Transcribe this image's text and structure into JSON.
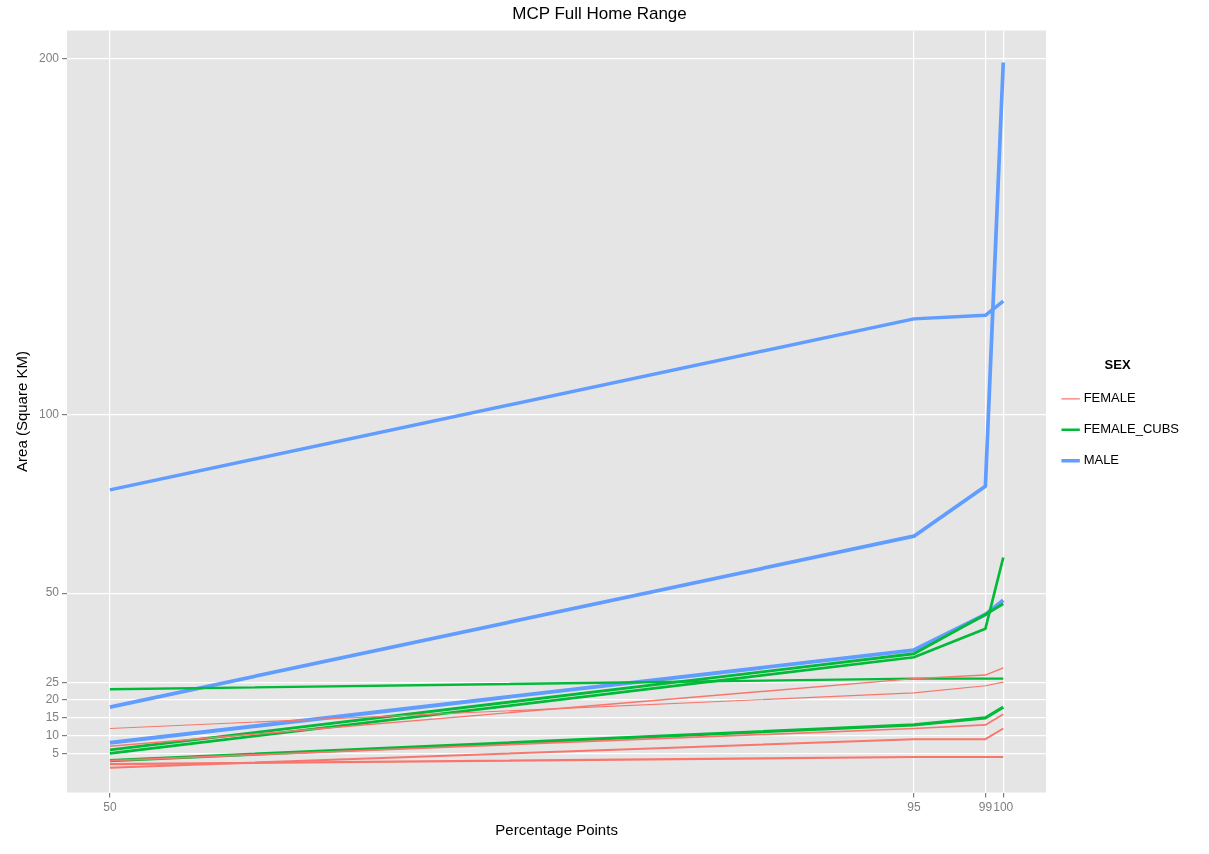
{
  "chart_data": {
    "type": "line",
    "title": "MCP Full Home Range",
    "xlabel": "Percentage Points",
    "ylabel": "Area (Square KM)",
    "legend_title": "SEX",
    "x": [
      50,
      95,
      99,
      100
    ],
    "xlim": [
      47.6,
      102.4
    ],
    "xticks": [
      50,
      95,
      99,
      100
    ],
    "ylim": [
      -6,
      208
    ],
    "yticks": [
      5,
      10,
      15,
      20,
      25,
      50,
      100,
      200
    ],
    "grid": true,
    "legend": "right",
    "marker": "none",
    "line_style": "solid",
    "series": [
      {
        "name": "FEMALE",
        "color": "#f8766d",
        "values": [
          12,
          22,
          24,
          25
        ]
      },
      {
        "color": "#f8766d",
        "values": [
          7,
          26,
          27,
          29
        ]
      },
      {
        "color": "#f8766d",
        "values": [
          3,
          12,
          13,
          16
        ]
      },
      {
        "color": "#f8766d",
        "values": [
          1,
          9,
          9,
          12
        ]
      },
      {
        "color": "#f8766d",
        "values": [
          2,
          4,
          4,
          4
        ]
      },
      {
        "name": "FEMALE_CUBS",
        "color": "#00ba38",
        "values": [
          23,
          26,
          26,
          26
        ]
      },
      {
        "color": "#00ba38",
        "values": [
          5,
          32,
          40,
          60
        ]
      },
      {
        "color": "#00ba38",
        "values": [
          6,
          33,
          44,
          47
        ]
      },
      {
        "color": "#00ba38",
        "values": [
          3,
          13,
          15,
          18
        ]
      },
      {
        "name": "MALE",
        "color": "#619cff",
        "values": [
          79,
          127,
          128,
          132
        ]
      },
      {
        "color": "#619cff",
        "values": [
          18,
          66,
          80,
          199
        ]
      },
      {
        "color": "#619cff",
        "values": [
          8,
          34,
          44,
          48
        ]
      }
    ]
  }
}
